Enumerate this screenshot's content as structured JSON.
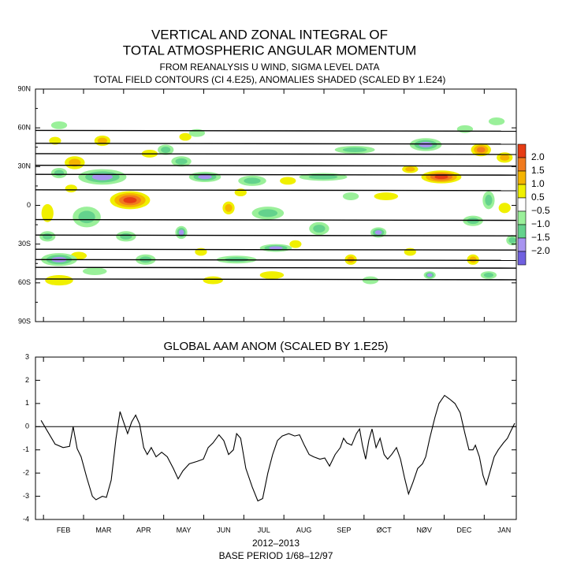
{
  "chart_data": [
    {
      "type": "contour",
      "title": [
        "VERTICAL AND ZONAL INTEGRAL OF",
        "TOTAL ATMOSPHERIC ANGULAR MOMENTUM"
      ],
      "subtitle": [
        "FROM REANALYSIS U WIND,  SIGMA LEVEL DATA",
        "TOTAL FIELD CONTOURS (CI 4.E25),  ANOMALIES SHADED (SCALED BY 1.E24)"
      ],
      "xlim": [
        0.8,
        12.8
      ],
      "xticks": [
        1,
        2,
        3,
        4,
        5,
        6,
        7,
        8,
        9,
        10,
        11,
        12
      ],
      "ylim": [
        -90,
        90
      ],
      "yticks": [
        {
          "value": 90,
          "label": "90N"
        },
        {
          "value": 60,
          "label": "60N"
        },
        {
          "value": 30,
          "label": "30N"
        },
        {
          "value": 0,
          "label": "0"
        },
        {
          "value": -30,
          "label": "30S"
        },
        {
          "value": -60,
          "label": "60S"
        },
        {
          "value": -90,
          "label": "90S"
        }
      ],
      "contour_lats": [
        58,
        48,
        40,
        31,
        24,
        12,
        -11,
        -23,
        -34,
        -42,
        -48,
        -57
      ],
      "levels": [
        {
          "value": 2.0,
          "label": "2.0"
        },
        {
          "value": 1.5,
          "label": "1.5"
        },
        {
          "value": 1.0,
          "label": "1.0"
        },
        {
          "value": 0.5,
          "label": "0.5"
        },
        {
          "value": -0.5,
          "label": "−0.5"
        },
        {
          "value": -1.0,
          "label": "−1.0"
        },
        {
          "value": -1.5,
          "label": "−1.5"
        },
        {
          "value": -2.0,
          "label": "−2.0"
        }
      ],
      "colors": [
        "#e63c14",
        "#f07a1e",
        "#f5b400",
        "#f0f000",
        "#ffffff",
        "#9af09a",
        "#64d28c",
        "#a894f0",
        "#7060e0"
      ],
      "anomalies": [
        {
          "x": 1.78,
          "lat": 33,
          "value": 1.3,
          "w": 0.5,
          "h": 10
        },
        {
          "x": 2.47,
          "lat": 50,
          "value": 1.0,
          "w": 0.4,
          "h": 8
        },
        {
          "x": 1.29,
          "lat": 50,
          "value": 0.8,
          "w": 0.3,
          "h": 6
        },
        {
          "x": 3.16,
          "lat": 4,
          "value": 2.0,
          "w": 1.0,
          "h": 14
        },
        {
          "x": 1.1,
          "lat": -6,
          "value": 0.8,
          "w": 0.3,
          "h": 14
        },
        {
          "x": 3.65,
          "lat": 40,
          "value": 0.8,
          "w": 0.4,
          "h": 6
        },
        {
          "x": 4.54,
          "lat": 53,
          "value": 0.8,
          "w": 0.3,
          "h": 6
        },
        {
          "x": 5.62,
          "lat": -2,
          "value": 1.0,
          "w": 0.3,
          "h": 10
        },
        {
          "x": 7.1,
          "lat": 19,
          "value": 0.8,
          "w": 0.4,
          "h": 6
        },
        {
          "x": 5.92,
          "lat": 10,
          "value": 0.7,
          "w": 0.3,
          "h": 6
        },
        {
          "x": 9.55,
          "lat": 7,
          "value": 0.8,
          "w": 0.6,
          "h": 6
        },
        {
          "x": 10.93,
          "lat": 22,
          "value": 2.0,
          "w": 1.0,
          "h": 10
        },
        {
          "x": 11.92,
          "lat": 43,
          "value": 1.5,
          "w": 0.5,
          "h": 10
        },
        {
          "x": 12.51,
          "lat": 37,
          "value": 1.2,
          "w": 0.4,
          "h": 8
        },
        {
          "x": 10.15,
          "lat": 28,
          "value": 1.0,
          "w": 0.4,
          "h": 6
        },
        {
          "x": 1.39,
          "lat": -58,
          "value": 0.9,
          "w": 0.7,
          "h": 8
        },
        {
          "x": 1.88,
          "lat": -39,
          "value": 0.8,
          "w": 0.4,
          "h": 6
        },
        {
          "x": 5.23,
          "lat": -58,
          "value": 0.8,
          "w": 0.5,
          "h": 6
        },
        {
          "x": 6.7,
          "lat": -54,
          "value": 0.8,
          "w": 0.6,
          "h": 6
        },
        {
          "x": 8.67,
          "lat": -42,
          "value": 1.0,
          "w": 0.3,
          "h": 8
        },
        {
          "x": 10.15,
          "lat": -36,
          "value": 0.7,
          "w": 0.3,
          "h": 6
        },
        {
          "x": 11.72,
          "lat": -42,
          "value": 1.0,
          "w": 0.3,
          "h": 8
        },
        {
          "x": 4.93,
          "lat": -36,
          "value": 0.7,
          "w": 0.3,
          "h": 6
        },
        {
          "x": 12.51,
          "lat": -2,
          "value": 0.9,
          "w": 0.3,
          "h": 8
        },
        {
          "x": 7.29,
          "lat": -30,
          "value": 0.7,
          "w": 0.3,
          "h": 6
        },
        {
          "x": 1.69,
          "lat": 13,
          "value": 0.7,
          "w": 0.3,
          "h": 6
        },
        {
          "x": 2.47,
          "lat": 22,
          "value": -1.8,
          "w": 1.2,
          "h": 12
        },
        {
          "x": 1.39,
          "lat": -42,
          "value": -1.8,
          "w": 0.9,
          "h": 10
        },
        {
          "x": 2.08,
          "lat": -9,
          "value": -1.2,
          "w": 0.7,
          "h": 16
        },
        {
          "x": 1.39,
          "lat": 25,
          "value": -1.0,
          "w": 0.4,
          "h": 8
        },
        {
          "x": 5.03,
          "lat": 22,
          "value": -1.5,
          "w": 0.8,
          "h": 8
        },
        {
          "x": 6.21,
          "lat": 19,
          "value": -1.2,
          "w": 0.7,
          "h": 8
        },
        {
          "x": 4.44,
          "lat": 34,
          "value": -1.0,
          "w": 0.5,
          "h": 8
        },
        {
          "x": 4.05,
          "lat": 43,
          "value": -1.0,
          "w": 0.4,
          "h": 8
        },
        {
          "x": 8.77,
          "lat": 43,
          "value": -1.0,
          "w": 1.0,
          "h": 6
        },
        {
          "x": 10.54,
          "lat": 47,
          "value": -1.8,
          "w": 0.8,
          "h": 10
        },
        {
          "x": 7.98,
          "lat": 22,
          "value": -1.0,
          "w": 1.2,
          "h": 6
        },
        {
          "x": 6.6,
          "lat": -6,
          "value": -1.0,
          "w": 0.8,
          "h": 10
        },
        {
          "x": 7.88,
          "lat": -18,
          "value": -1.0,
          "w": 0.5,
          "h": 10
        },
        {
          "x": 9.36,
          "lat": -21,
          "value": -1.5,
          "w": 0.4,
          "h": 8
        },
        {
          "x": 4.44,
          "lat": -21,
          "value": -1.5,
          "w": 0.3,
          "h": 10
        },
        {
          "x": 3.06,
          "lat": -24,
          "value": -1.2,
          "w": 0.5,
          "h": 8
        },
        {
          "x": 6.8,
          "lat": -33,
          "value": -1.6,
          "w": 0.8,
          "h": 6
        },
        {
          "x": 3.55,
          "lat": -42,
          "value": -1.2,
          "w": 0.5,
          "h": 8
        },
        {
          "x": 5.82,
          "lat": -42,
          "value": -1.0,
          "w": 1.0,
          "h": 6
        },
        {
          "x": 10.64,
          "lat": -54,
          "value": -1.5,
          "w": 0.3,
          "h": 6
        },
        {
          "x": 12.11,
          "lat": -54,
          "value": -1.0,
          "w": 0.4,
          "h": 6
        },
        {
          "x": 12.11,
          "lat": 4,
          "value": -1.0,
          "w": 0.3,
          "h": 14
        },
        {
          "x": 11.72,
          "lat": -12,
          "value": -1.0,
          "w": 0.5,
          "h": 8
        },
        {
          "x": 12.31,
          "lat": 65,
          "value": -0.8,
          "w": 0.4,
          "h": 6
        },
        {
          "x": 11.52,
          "lat": 59,
          "value": -0.8,
          "w": 0.4,
          "h": 6
        },
        {
          "x": 1.39,
          "lat": 62,
          "value": -0.8,
          "w": 0.4,
          "h": 6
        },
        {
          "x": 4.83,
          "lat": 56,
          "value": -0.8,
          "w": 0.4,
          "h": 6
        },
        {
          "x": 12.7,
          "lat": -27,
          "value": -1.0,
          "w": 0.3,
          "h": 8
        },
        {
          "x": 1.1,
          "lat": -24,
          "value": -1.0,
          "w": 0.4,
          "h": 8
        },
        {
          "x": 2.28,
          "lat": -51,
          "value": -0.8,
          "w": 0.6,
          "h": 6
        },
        {
          "x": 9.16,
          "lat": -58,
          "value": -0.8,
          "w": 0.4,
          "h": 6
        },
        {
          "x": 8.67,
          "lat": 7,
          "value": -0.8,
          "w": 0.4,
          "h": 6
        }
      ]
    },
    {
      "type": "line",
      "title": "GLOBAL AAM ANOM (SCALED BY 1.E25)",
      "xlabel": "2012–2013",
      "note": "BASE PERIOD  1/68–12/97",
      "color": "#000000",
      "xlim": [
        0.8,
        12.8
      ],
      "xticks": [
        {
          "value": 1.5,
          "label": "FEB"
        },
        {
          "value": 2.5,
          "label": "MAR"
        },
        {
          "value": 3.5,
          "label": "APR"
        },
        {
          "value": 4.5,
          "label": "MAY"
        },
        {
          "value": 5.5,
          "label": "JUN"
        },
        {
          "value": 6.5,
          "label": "JUL"
        },
        {
          "value": 7.5,
          "label": "AUG"
        },
        {
          "value": 8.5,
          "label": "SEP"
        },
        {
          "value": 9.5,
          "label": "ØCT"
        },
        {
          "value": 10.5,
          "label": "NØV"
        },
        {
          "value": 11.5,
          "label": "DEC"
        },
        {
          "value": 12.5,
          "label": "JAN"
        }
      ],
      "xminor": [
        1,
        2,
        3,
        4,
        5,
        6,
        7,
        8,
        9,
        10,
        11,
        12
      ],
      "ylim": [
        -4,
        3
      ],
      "yticks": [
        -4,
        -3,
        -2,
        -1,
        0,
        1,
        2,
        3
      ],
      "x": [
        0.94,
        1.29,
        1.49,
        1.65,
        1.74,
        1.84,
        1.94,
        2.08,
        2.22,
        2.31,
        2.47,
        2.57,
        2.69,
        2.81,
        2.91,
        3.0,
        3.1,
        3.2,
        3.3,
        3.4,
        3.5,
        3.59,
        3.69,
        3.81,
        3.95,
        4.09,
        4.24,
        4.36,
        4.48,
        4.64,
        4.83,
        4.99,
        5.11,
        5.23,
        5.38,
        5.5,
        5.62,
        5.74,
        5.82,
        5.92,
        6.05,
        6.21,
        6.35,
        6.47,
        6.6,
        6.72,
        6.84,
        6.96,
        7.12,
        7.27,
        7.39,
        7.51,
        7.63,
        7.74,
        7.9,
        8.02,
        8.14,
        8.28,
        8.41,
        8.49,
        8.57,
        8.69,
        8.81,
        8.89,
        8.96,
        9.04,
        9.12,
        9.2,
        9.3,
        9.4,
        9.5,
        9.59,
        9.69,
        9.81,
        9.91,
        10.01,
        10.11,
        10.22,
        10.34,
        10.46,
        10.54,
        10.64,
        10.77,
        10.87,
        11.01,
        11.13,
        11.27,
        11.4,
        11.52,
        11.62,
        11.72,
        11.78,
        11.88,
        11.97,
        12.05,
        12.15,
        12.25,
        12.35,
        12.48,
        12.58,
        12.66,
        12.76
      ],
      "values": [
        0.27,
        -0.75,
        -0.9,
        -0.85,
        0.0,
        -0.95,
        -1.3,
        -2.2,
        -3.0,
        -3.15,
        -3.0,
        -3.05,
        -2.3,
        -0.5,
        0.65,
        0.2,
        -0.3,
        0.2,
        0.5,
        0.1,
        -0.9,
        -1.2,
        -0.9,
        -1.3,
        -1.1,
        -1.3,
        -1.8,
        -2.25,
        -1.9,
        -1.6,
        -1.5,
        -1.4,
        -0.9,
        -0.7,
        -0.35,
        -0.6,
        -1.2,
        -1.0,
        -0.3,
        -0.5,
        -1.8,
        -2.6,
        -3.2,
        -3.1,
        -2.0,
        -1.2,
        -0.6,
        -0.4,
        -0.3,
        -0.4,
        -0.35,
        -0.8,
        -1.2,
        -1.3,
        -1.4,
        -1.35,
        -1.7,
        -1.2,
        -0.9,
        -0.5,
        -0.7,
        -0.8,
        -0.3,
        -0.1,
        -0.8,
        -1.4,
        -0.6,
        -0.1,
        -0.9,
        -0.5,
        -1.2,
        -1.4,
        -1.2,
        -0.9,
        -1.4,
        -2.2,
        -2.9,
        -2.4,
        -1.8,
        -1.6,
        -1.3,
        -0.5,
        0.4,
        1.0,
        1.35,
        1.2,
        1.0,
        0.6,
        -0.3,
        -1.0,
        -1.0,
        -0.8,
        -1.3,
        -2.1,
        -2.5,
        -1.9,
        -1.3,
        -1.0,
        -0.7,
        -0.5,
        -0.2,
        0.15
      ]
    }
  ]
}
